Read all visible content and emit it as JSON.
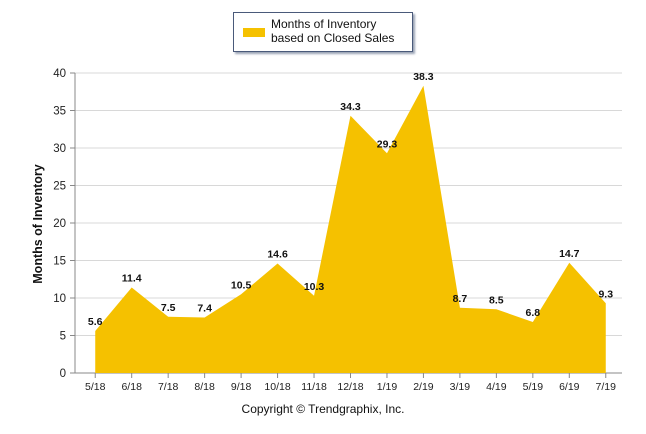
{
  "legend": {
    "label": "Months of Inventory based on Closed Sales"
  },
  "axis": {
    "y_title": "Months of Inventory"
  },
  "footer": {
    "copyright": "Copyright © Trendgraphix, Inc."
  },
  "colors": {
    "area": "#f5c100",
    "grid": "#d8d8d8",
    "axis": "#888888"
  },
  "chart_data": {
    "type": "area",
    "title": "",
    "xlabel": "",
    "ylabel": "Months of Inventory",
    "categories": [
      "5/18",
      "6/18",
      "7/18",
      "8/18",
      "9/18",
      "10/18",
      "11/18",
      "12/18",
      "1/19",
      "2/19",
      "3/19",
      "4/19",
      "5/19",
      "6/19",
      "7/19"
    ],
    "series": [
      {
        "name": "Months of Inventory based on Closed Sales",
        "values": [
          5.6,
          11.4,
          7.5,
          7.4,
          10.5,
          14.6,
          10.3,
          34.3,
          29.3,
          38.3,
          8.7,
          8.5,
          6.8,
          14.7,
          9.3
        ]
      }
    ],
    "ylim": [
      0,
      40
    ],
    "yticks": [
      0,
      5,
      10,
      15,
      20,
      25,
      30,
      35,
      40
    ],
    "grid": true,
    "legend_position": "top-center",
    "data_labels": true
  }
}
